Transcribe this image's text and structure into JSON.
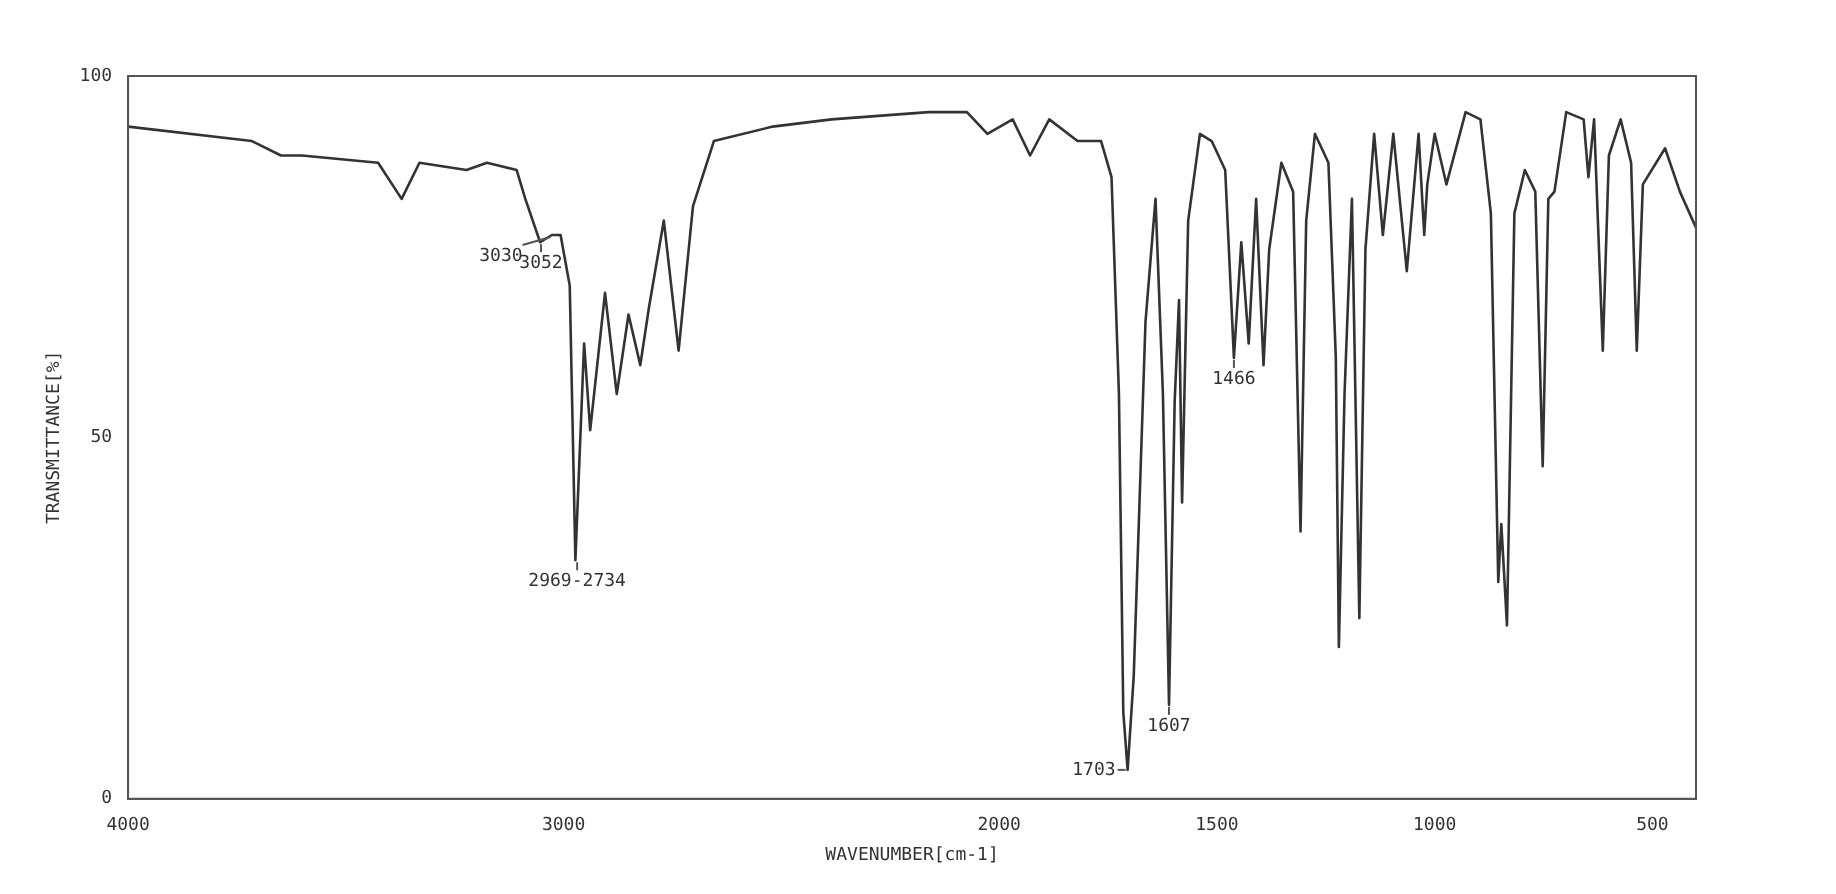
{
  "chart_data": {
    "type": "line",
    "xlabel": "WAVENUMBER[cm-1]",
    "ylabel": "TRANSMITTANCE[%]",
    "xlim": [
      4000,
      400
    ],
    "xticks": [
      4000,
      3000,
      2000,
      1500,
      1000,
      500
    ],
    "ylim": [
      0,
      100
    ],
    "yticks": [
      0,
      50,
      100
    ],
    "grid": false,
    "legend": false,
    "marker": "none",
    "line_style": "solid",
    "x": [
      4000,
      3716,
      3649,
      3601,
      3426,
      3372,
      3331,
      3223,
      3176,
      3108,
      3088,
      3054,
      3027,
      3007,
      2986,
      2973,
      2953,
      2939,
      2905,
      2878,
      2851,
      2824,
      2804,
      2770,
      2736,
      2703,
      2655,
      2520,
      2385,
      2162,
      2074,
      2027,
      1969,
      1929,
      1885,
      1820,
      1766,
      1742,
      1725,
      1715,
      1705,
      1691,
      1664,
      1641,
      1624,
      1610,
      1597,
      1587,
      1580,
      1566,
      1539,
      1512,
      1481,
      1461,
      1444,
      1427,
      1410,
      1393,
      1380,
      1352,
      1325,
      1308,
      1295,
      1275,
      1244,
      1227,
      1220,
      1207,
      1190,
      1173,
      1159,
      1139,
      1119,
      1095,
      1064,
      1037,
      1024,
      1017,
      1000,
      973,
      929,
      895,
      871,
      854,
      847,
      834,
      817,
      793,
      769,
      752,
      739,
      725,
      698,
      658,
      647,
      634,
      614,
      600,
      573,
      549,
      536,
      522,
      471,
      437,
      400
    ],
    "series": [
      {
        "color": "#333333",
        "values": [
          93,
          91,
          89,
          89,
          88,
          83,
          88,
          87,
          88,
          87,
          83,
          77,
          78,
          78,
          71,
          33,
          63,
          51,
          70,
          56,
          67,
          60,
          68,
          80,
          62,
          82,
          91,
          93,
          94,
          95,
          95,
          92,
          94,
          89,
          94,
          91,
          91,
          86,
          56,
          12,
          4,
          17,
          66,
          83,
          56,
          13,
          55,
          69,
          41,
          80,
          92,
          91,
          87,
          61,
          77,
          63,
          83,
          60,
          76,
          88,
          84,
          37,
          80,
          92,
          88,
          61,
          21,
          56,
          83,
          25,
          76,
          92,
          78,
          92,
          73,
          92,
          78,
          85,
          92,
          85,
          95,
          94,
          81,
          30,
          38,
          24,
          81,
          87,
          84,
          46,
          83,
          84,
          95,
          94,
          86,
          94,
          62,
          89,
          94,
          88,
          62,
          85,
          90,
          84,
          79
        ]
      }
    ],
    "annotations": [
      {
        "text": "3052",
        "x": 3052,
        "y": 77
      },
      {
        "text": "3030",
        "x": 3030,
        "y": 78
      },
      {
        "text": "2969-2734",
        "x": 2969,
        "y": 33
      },
      {
        "text": "1703",
        "x": 1705,
        "y": 4
      },
      {
        "text": "1607",
        "x": 1610,
        "y": 13
      },
      {
        "text": "1466",
        "x": 1461,
        "y": 61
      }
    ]
  }
}
